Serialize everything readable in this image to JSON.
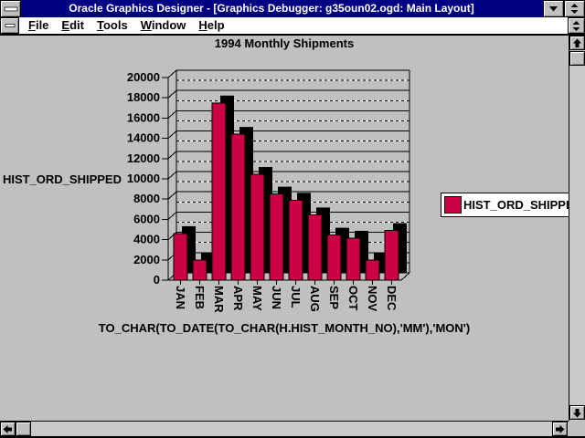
{
  "window": {
    "title": "Oracle Graphics Designer - [Graphics Debugger: g35oun02.ogd: Main Layout]",
    "controls": {
      "system_menu": "window-menu",
      "minimize": "minimize",
      "restore": "restore",
      "child_system_menu": "document-menu",
      "child_restore": "restore-document"
    }
  },
  "menu": {
    "items": [
      {
        "label": "File",
        "accel": "F"
      },
      {
        "label": "Edit",
        "accel": "E"
      },
      {
        "label": "Tools",
        "accel": "T"
      },
      {
        "label": "Window",
        "accel": "W"
      },
      {
        "label": "Help",
        "accel": "H"
      }
    ]
  },
  "colors": {
    "titlebar": "#000080",
    "titlebar_text": "#FFFFFF",
    "window_bg": "#C0C0C0",
    "bar": "#CC0044",
    "bar_shadow": "#000000",
    "legend_bg": "#FFFFFF",
    "gridline": "#000000"
  },
  "chart_data": {
    "type": "bar",
    "title": "1994 Monthly Shipments",
    "xlabel": "TO_CHAR(TO_DATE(TO_CHAR(H.HIST_MONTH_NO),'MM'),'MON')",
    "ylabel": "HIST_ORD_SHIPPED",
    "categories": [
      "JAN",
      "FEB",
      "MAR",
      "APR",
      "MAY",
      "JUN",
      "JUL",
      "AUG",
      "SEP",
      "OCT",
      "NOV",
      "DEC"
    ],
    "series": [
      {
        "name": "HIST_ORD_SHIPPED",
        "values": [
          4600,
          2000,
          17500,
          14400,
          10450,
          8500,
          7900,
          6450,
          4450,
          4150,
          2000,
          4900
        ]
      }
    ],
    "ylim": [
      0,
      20000
    ],
    "ytick_step": 2000,
    "grid": "horizontal: solid major every 2000, dashed minor every 1000",
    "legend_position": "right",
    "style": "2.5D bars with black drop-shadow depth",
    "x_tick_label_rotation_deg": 90
  }
}
